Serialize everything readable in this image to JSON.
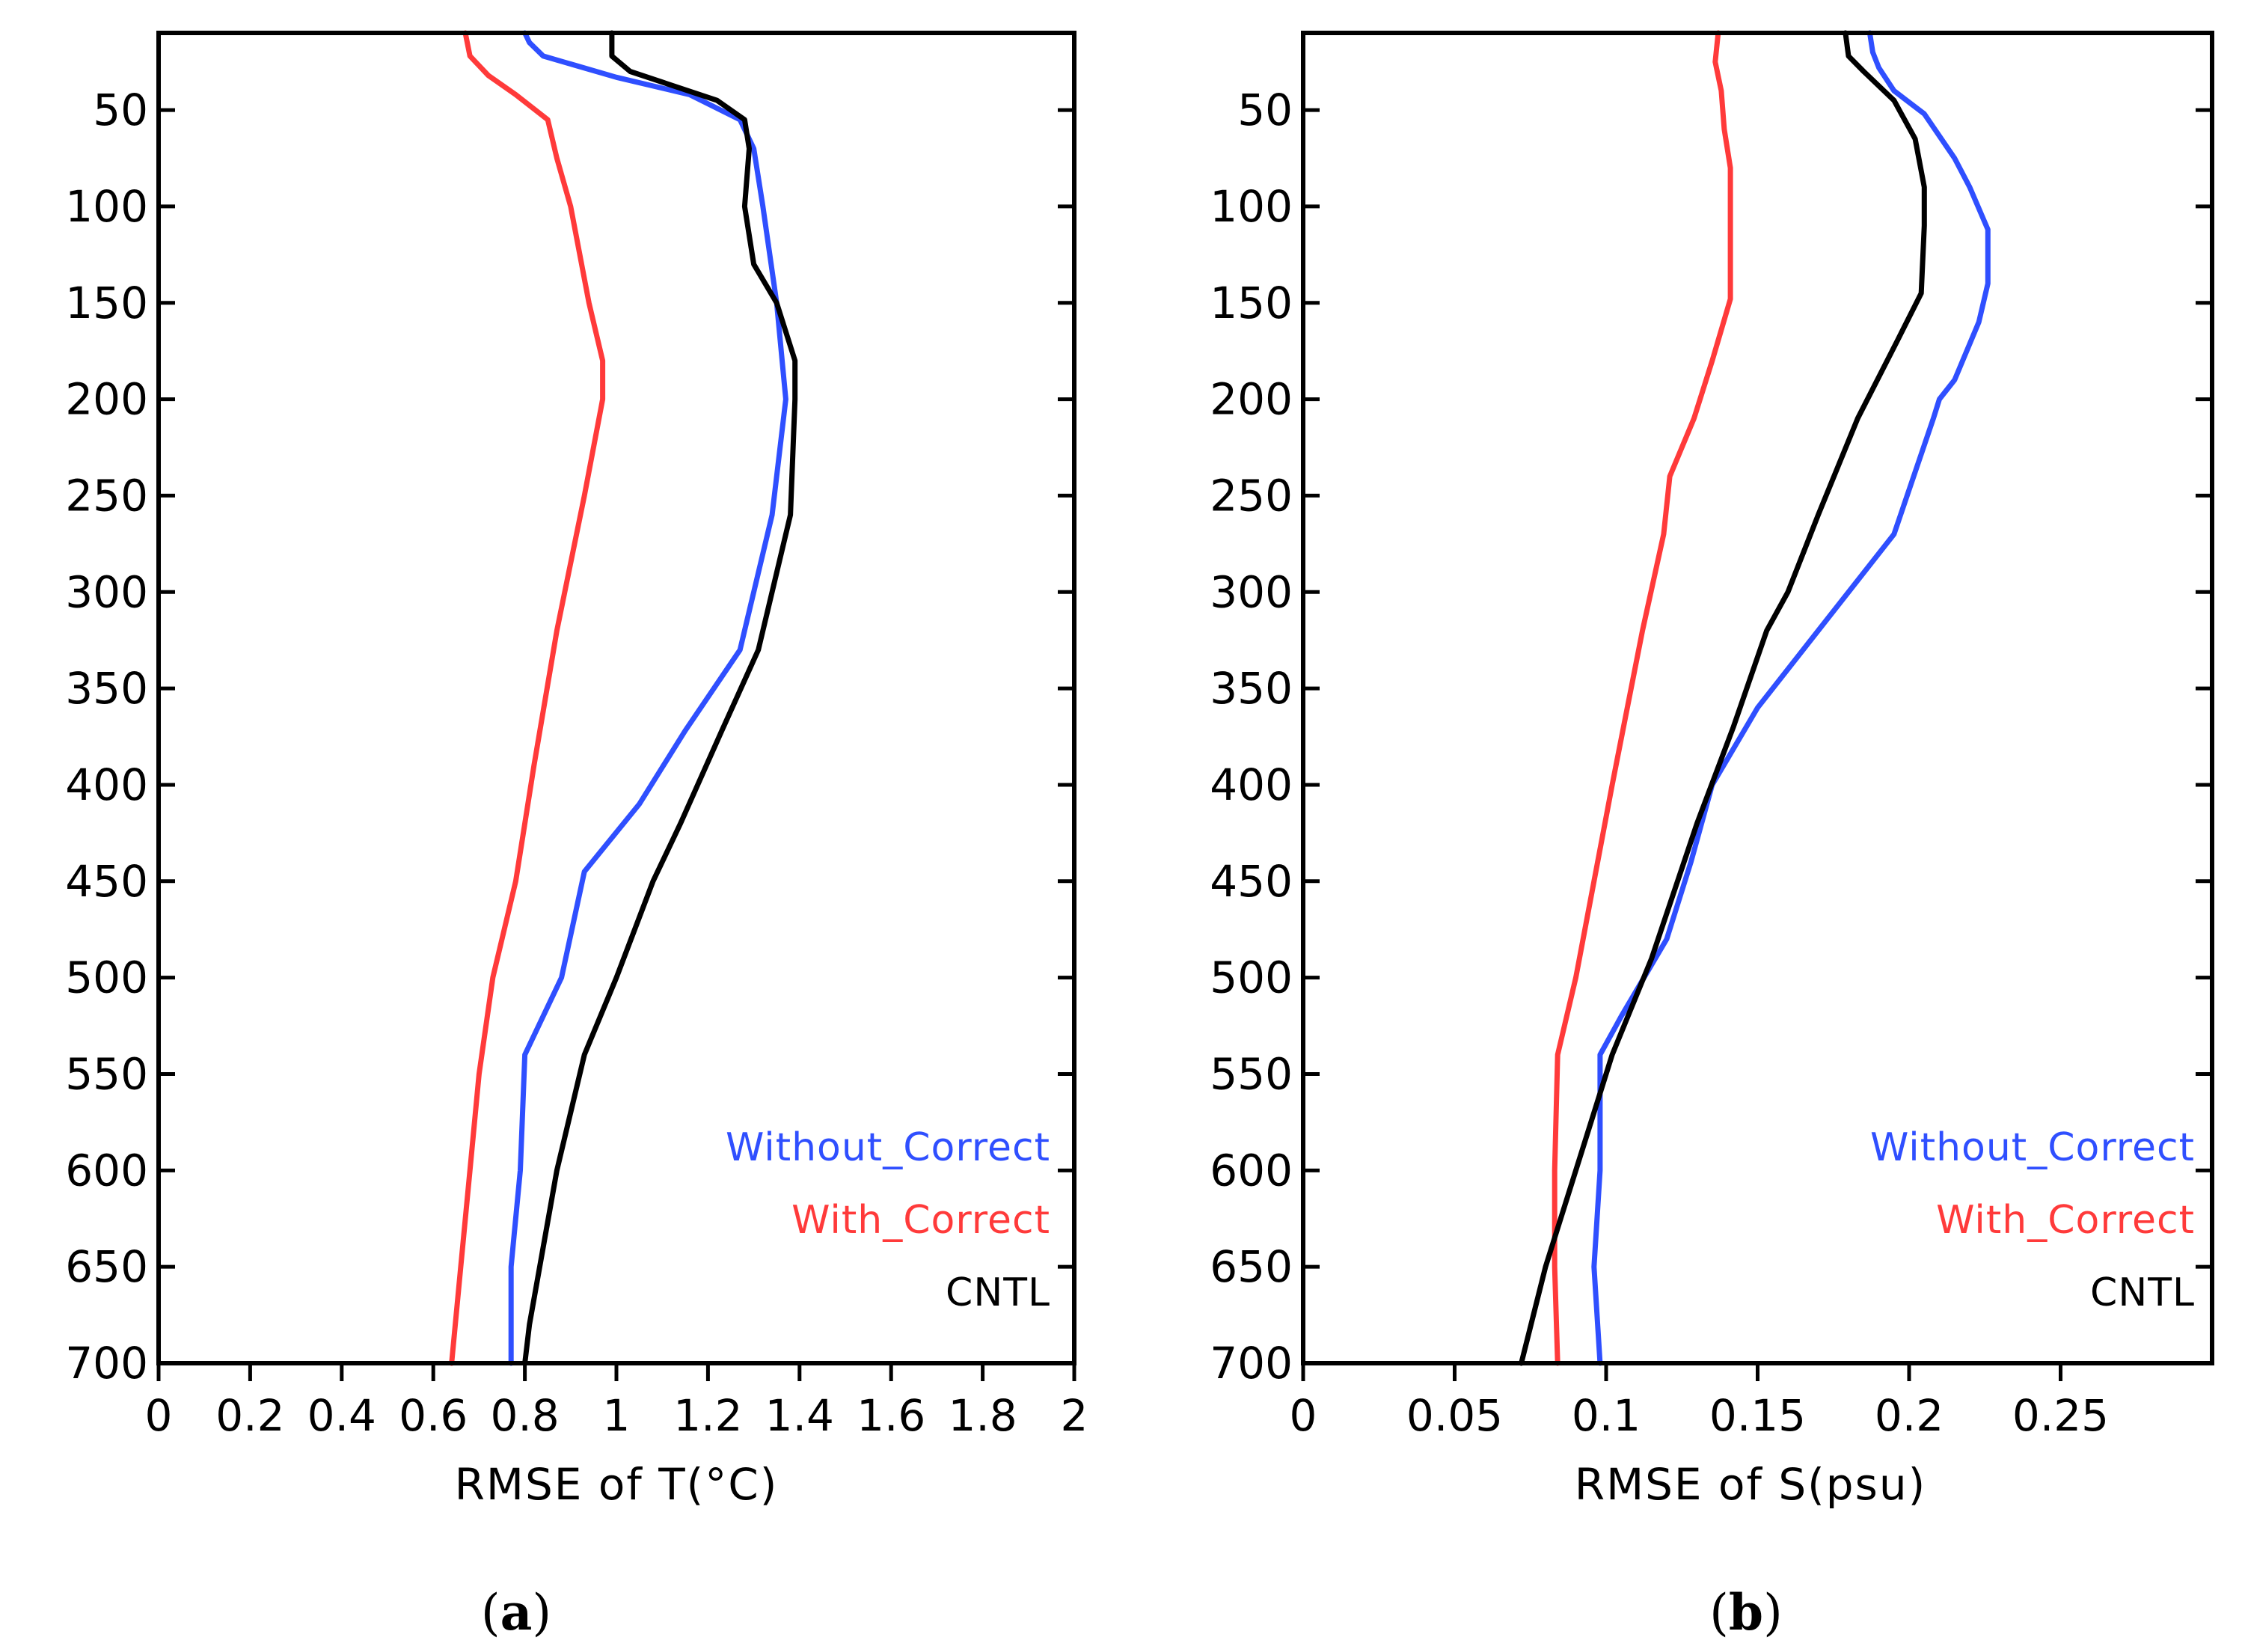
{
  "colors": {
    "Without_Correct": "#2f4fff",
    "With_Correct": "#ff3a3a",
    "CNTL": "#000000"
  },
  "chart_data": [
    {
      "type": "line",
      "panel": "a",
      "panel_label": {
        "open": "(",
        "letter": "a",
        "close": ")"
      },
      "xlabel": "RMSE of T(°C)",
      "ylabel": "",
      "xlim": [
        0,
        2
      ],
      "ylim": [
        700,
        10
      ],
      "xticks": [
        "0",
        "0.2",
        "0.4",
        "0.6",
        "0.8",
        "1",
        "1.2",
        "1.4",
        "1.6",
        "1.8",
        "2"
      ],
      "xtick_values": [
        0,
        0.2,
        0.4,
        0.6,
        0.8,
        1,
        1.2,
        1.4,
        1.6,
        1.8,
        2
      ],
      "yticks": [
        "50",
        "100",
        "150",
        "200",
        "250",
        "300",
        "350",
        "400",
        "450",
        "500",
        "550",
        "600",
        "650",
        "700"
      ],
      "ytick_values": [
        50,
        100,
        150,
        200,
        250,
        300,
        350,
        400,
        450,
        500,
        550,
        600,
        650,
        700
      ],
      "legend_position": "bottom-right",
      "series": [
        {
          "name": "Without_Correct",
          "points": [
            [
              0.8,
              10
            ],
            [
              0.81,
              15
            ],
            [
              0.84,
              22
            ],
            [
              1.0,
              33
            ],
            [
              1.16,
              42
            ],
            [
              1.27,
              55
            ],
            [
              1.3,
              70
            ],
            [
              1.32,
              100
            ],
            [
              1.35,
              150
            ],
            [
              1.37,
              200
            ],
            [
              1.34,
              260
            ],
            [
              1.27,
              330
            ],
            [
              1.15,
              372
            ],
            [
              1.05,
              410
            ],
            [
              0.93,
              445
            ],
            [
              0.88,
              500
            ],
            [
              0.8,
              540
            ],
            [
              0.79,
              600
            ],
            [
              0.77,
              650
            ],
            [
              0.77,
              700
            ]
          ]
        },
        {
          "name": "With_Correct",
          "points": [
            [
              0.67,
              10
            ],
            [
              0.68,
              22
            ],
            [
              0.72,
              32
            ],
            [
              0.78,
              42
            ],
            [
              0.85,
              55
            ],
            [
              0.87,
              75
            ],
            [
              0.9,
              100
            ],
            [
              0.94,
              150
            ],
            [
              0.97,
              180
            ],
            [
              0.97,
              200
            ],
            [
              0.93,
              250
            ],
            [
              0.87,
              320
            ],
            [
              0.82,
              390
            ],
            [
              0.78,
              450
            ],
            [
              0.73,
              500
            ],
            [
              0.7,
              550
            ],
            [
              0.68,
              600
            ],
            [
              0.66,
              650
            ],
            [
              0.64,
              700
            ]
          ]
        },
        {
          "name": "CNTL",
          "points": [
            [
              0.99,
              10
            ],
            [
              0.99,
              22
            ],
            [
              1.03,
              30
            ],
            [
              1.22,
              45
            ],
            [
              1.28,
              55
            ],
            [
              1.29,
              70
            ],
            [
              1.28,
              100
            ],
            [
              1.3,
              130
            ],
            [
              1.35,
              150
            ],
            [
              1.39,
              180
            ],
            [
              1.39,
              200
            ],
            [
              1.38,
              260
            ],
            [
              1.31,
              330
            ],
            [
              1.23,
              372
            ],
            [
              1.14,
              420
            ],
            [
              1.08,
              450
            ],
            [
              1.0,
              500
            ],
            [
              0.93,
              540
            ],
            [
              0.87,
              600
            ],
            [
              0.81,
              680
            ],
            [
              0.8,
              700
            ]
          ]
        }
      ]
    },
    {
      "type": "line",
      "panel": "b",
      "panel_label": {
        "open": "(",
        "letter": "b",
        "close": ")"
      },
      "xlabel": "RMSE of S(psu)",
      "ylabel": "",
      "xlim": [
        0,
        0.3
      ],
      "ylim": [
        700,
        10
      ],
      "xticks": [
        "0",
        "0.05",
        "0.1",
        "0.15",
        "0.2",
        "0.25"
      ],
      "xtick_values": [
        0,
        0.05,
        0.1,
        0.15,
        0.2,
        0.25
      ],
      "yticks": [
        "50",
        "100",
        "150",
        "200",
        "250",
        "300",
        "350",
        "400",
        "450",
        "500",
        "550",
        "600",
        "650",
        "700"
      ],
      "ytick_values": [
        50,
        100,
        150,
        200,
        250,
        300,
        350,
        400,
        450,
        500,
        550,
        600,
        650,
        700
      ],
      "legend_position": "bottom-right",
      "series": [
        {
          "name": "Without_Correct",
          "points": [
            [
              0.187,
              10
            ],
            [
              0.188,
              20
            ],
            [
              0.19,
              28
            ],
            [
              0.195,
              40
            ],
            [
              0.205,
              52
            ],
            [
              0.215,
              75
            ],
            [
              0.22,
              90
            ],
            [
              0.226,
              112
            ],
            [
              0.226,
              140
            ],
            [
              0.223,
              160
            ],
            [
              0.215,
              190
            ],
            [
              0.21,
              200
            ],
            [
              0.208,
              210
            ],
            [
              0.195,
              270
            ],
            [
              0.17,
              320
            ],
            [
              0.15,
              360
            ],
            [
              0.135,
              400
            ],
            [
              0.128,
              440
            ],
            [
              0.12,
              480
            ],
            [
              0.105,
              520
            ],
            [
              0.098,
              540
            ],
            [
              0.098,
              600
            ],
            [
              0.096,
              650
            ],
            [
              0.098,
              700
            ]
          ]
        },
        {
          "name": "With_Correct",
          "points": [
            [
              0.137,
              10
            ],
            [
              0.136,
              25
            ],
            [
              0.138,
              40
            ],
            [
              0.139,
              60
            ],
            [
              0.141,
              80
            ],
            [
              0.141,
              100
            ],
            [
              0.141,
              120
            ],
            [
              0.141,
              148
            ],
            [
              0.135,
              180
            ],
            [
              0.129,
              210
            ],
            [
              0.121,
              240
            ],
            [
              0.119,
              270
            ],
            [
              0.112,
              320
            ],
            [
              0.107,
              360
            ],
            [
              0.102,
              400
            ],
            [
              0.096,
              450
            ],
            [
              0.09,
              500
            ],
            [
              0.084,
              540
            ],
            [
              0.083,
              600
            ],
            [
              0.083,
              650
            ],
            [
              0.084,
              700
            ]
          ]
        },
        {
          "name": "CNTL",
          "points": [
            [
              0.179,
              10
            ],
            [
              0.18,
              22
            ],
            [
              0.185,
              30
            ],
            [
              0.195,
              45
            ],
            [
              0.202,
              65
            ],
            [
              0.205,
              90
            ],
            [
              0.205,
              110
            ],
            [
              0.204,
              145
            ],
            [
              0.196,
              170
            ],
            [
              0.183,
              210
            ],
            [
              0.17,
              260
            ],
            [
              0.16,
              300
            ],
            [
              0.153,
              320
            ],
            [
              0.142,
              370
            ],
            [
              0.13,
              420
            ],
            [
              0.115,
              490
            ],
            [
              0.102,
              540
            ],
            [
              0.09,
              600
            ],
            [
              0.08,
              650
            ],
            [
              0.072,
              700
            ]
          ]
        }
      ]
    }
  ]
}
